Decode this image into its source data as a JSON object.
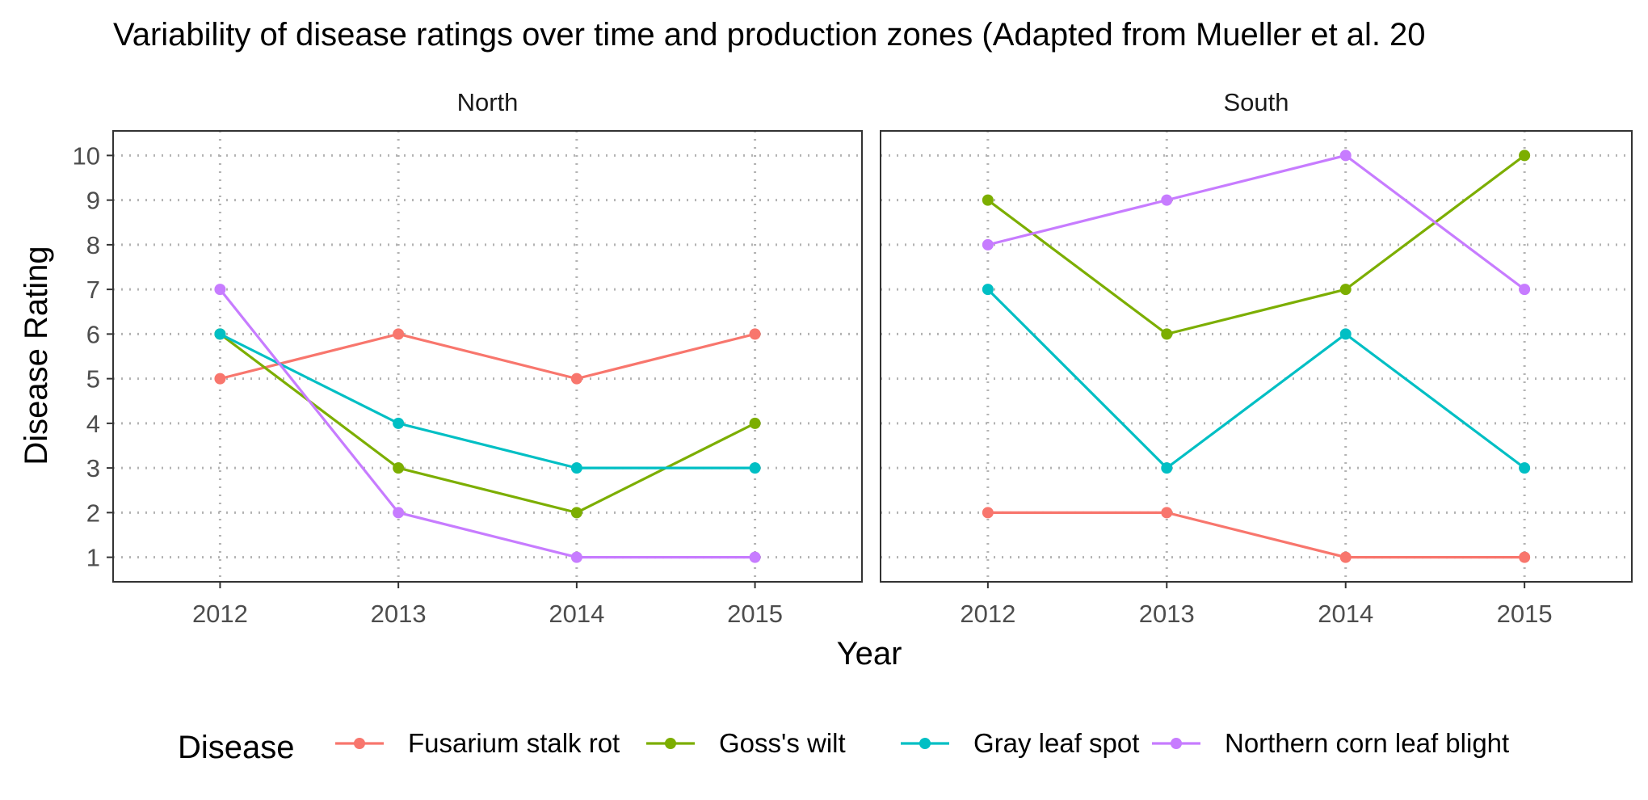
{
  "chart_data": {
    "type": "line",
    "title": "Variability of disease ratings over time and production zones (Adapted from  Mueller et al. 20",
    "xlabel": "Year",
    "ylabel": "Disease Rating",
    "x": [
      "2012",
      "2013",
      "2014",
      "2015"
    ],
    "y_ticks": [
      "1",
      "2",
      "3",
      "4",
      "5",
      "6",
      "7",
      "8",
      "9",
      "10"
    ],
    "ylim": [
      0.45,
      10.55
    ],
    "grid": "dotted",
    "legend_position": "bottom",
    "legend_title": "Disease",
    "series_meta": [
      {
        "name": "Fusarium stalk rot",
        "color": "#F8766D"
      },
      {
        "name": "Goss's wilt",
        "color": "#7CAE00"
      },
      {
        "name": "Gray leaf spot",
        "color": "#00BFC4"
      },
      {
        "name": "Northern corn leaf blight",
        "color": "#C77CFF"
      }
    ],
    "panels": [
      {
        "label": "North",
        "series": [
          {
            "name": "Fusarium stalk rot",
            "values": [
              5,
              6,
              5,
              6
            ]
          },
          {
            "name": "Goss's wilt",
            "values": [
              6,
              3,
              2,
              4
            ]
          },
          {
            "name": "Gray leaf spot",
            "values": [
              6,
              4,
              3,
              3
            ]
          },
          {
            "name": "Northern corn leaf blight",
            "values": [
              7,
              2,
              1,
              1
            ]
          }
        ]
      },
      {
        "label": "South",
        "series": [
          {
            "name": "Fusarium stalk rot",
            "values": [
              2,
              2,
              1,
              1
            ]
          },
          {
            "name": "Goss's wilt",
            "values": [
              9,
              6,
              7,
              10
            ]
          },
          {
            "name": "Gray leaf spot",
            "values": [
              7,
              3,
              6,
              3
            ]
          },
          {
            "name": "Northern corn leaf blight",
            "values": [
              8,
              9,
              10,
              7
            ]
          }
        ]
      }
    ]
  }
}
